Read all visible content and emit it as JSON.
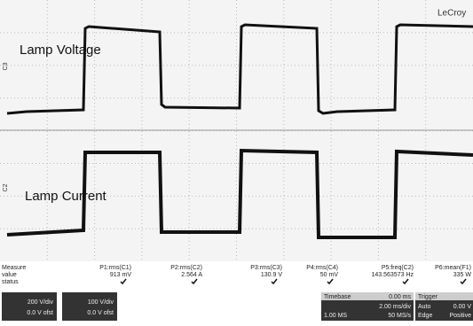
{
  "brand": "LeCroy",
  "traces": [
    {
      "channel": "C3",
      "label": "Lamp Voltage"
    },
    {
      "channel": "C2",
      "label": "Lamp Current"
    }
  ],
  "measure": {
    "headers": [
      "Measure",
      "value",
      "status"
    ],
    "params": [
      {
        "name": "P1:rms(C1)",
        "value": "913 mV"
      },
      {
        "name": "P2:rms(C2)",
        "value": "2.564 A"
      },
      {
        "name": "P3:rms(C3)",
        "value": "130.9 V"
      },
      {
        "name": "P4:rms(C4)",
        "value": "50 mV"
      },
      {
        "name": "P5:freq(C2)",
        "value": "143.563573 Hz"
      },
      {
        "name": "P6:mean(F1)",
        "value": "335 W"
      }
    ]
  },
  "channels": [
    {
      "scale": "200 V/div",
      "offset": "0.0 V ofst"
    },
    {
      "scale": "100 V/div",
      "offset": "0.0 V ofst"
    }
  ],
  "timebase": {
    "title": "Timebase",
    "delay": "0.00 ms",
    "scale": "2.00 ms/div",
    "samples": "1.00 MS",
    "rate": "50 MS/s"
  },
  "trigger": {
    "title": "Trigger",
    "mode": "Auto",
    "level": "0.00 V",
    "type": "Edge",
    "slope": "Positive"
  }
}
